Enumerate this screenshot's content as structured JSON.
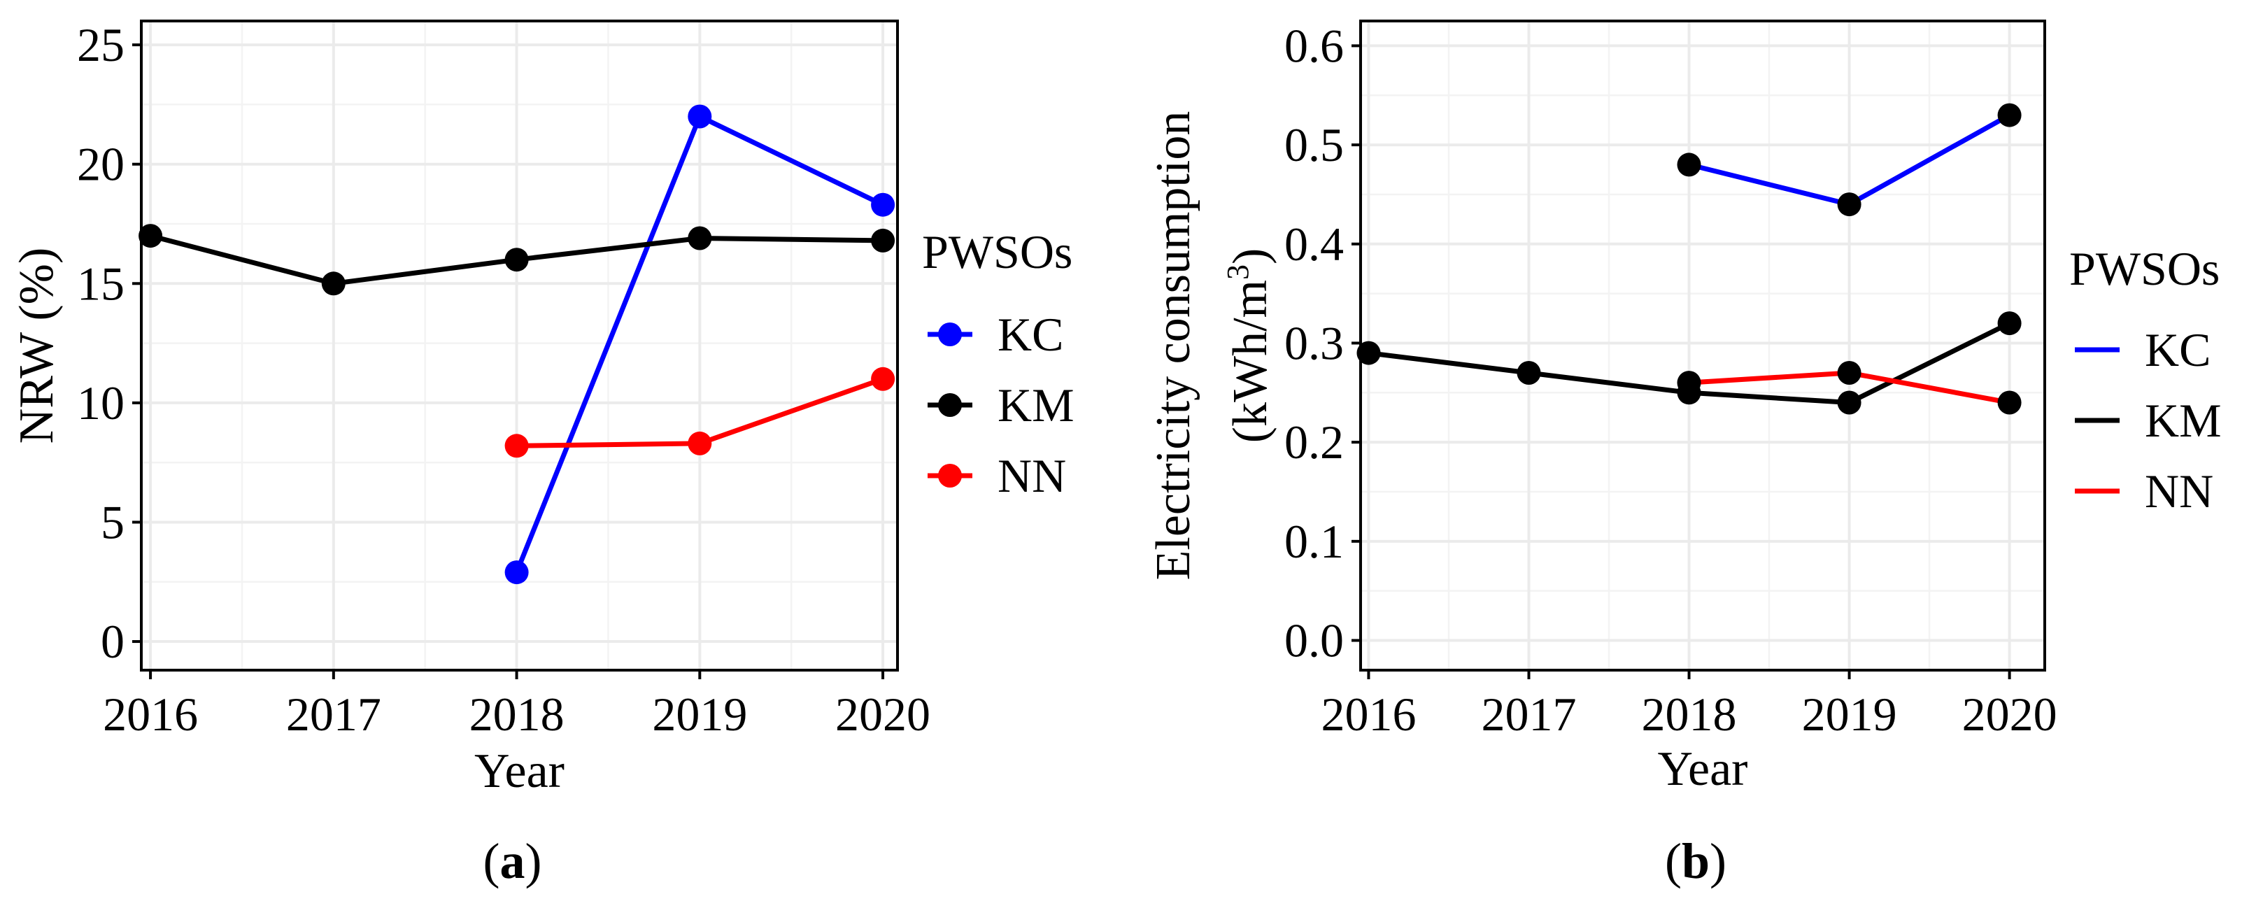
{
  "chart_data": [
    {
      "type": "line",
      "panel": "a",
      "panel_label": {
        "open": "(",
        "letter": "a",
        "close": ")"
      },
      "title": "",
      "xlabel": "Year",
      "ylabel": "NRW (%)",
      "x": [
        2016,
        2017,
        2018,
        2019,
        2020
      ],
      "x_tick_labels": [
        "2016",
        "2017",
        "2018",
        "2019",
        "2020"
      ],
      "xlim": [
        2015.95,
        2020.08
      ],
      "ylim": [
        -1.2,
        26
      ],
      "y_ticks": [
        0,
        5,
        10,
        15,
        20,
        25
      ],
      "y_tick_labels": [
        "0",
        "5",
        "10",
        "15",
        "20",
        "25"
      ],
      "grid": true,
      "legend": {
        "title": "PWSOs",
        "position": "right",
        "key": "point"
      },
      "series": [
        {
          "name": "KC",
          "color": "#0000ff",
          "points": [
            [
              2018,
              2.9
            ],
            [
              2019,
              22.0
            ],
            [
              2020,
              18.3
            ]
          ],
          "marker_color": "#0000ff"
        },
        {
          "name": "KM",
          "color": "#000000",
          "points": [
            [
              2016,
              17.0
            ],
            [
              2017,
              15.0
            ],
            [
              2018,
              16.0
            ],
            [
              2019,
              16.9
            ],
            [
              2020,
              16.8
            ]
          ],
          "marker_color": "#000000"
        },
        {
          "name": "NN",
          "color": "#ff0000",
          "points": [
            [
              2018,
              8.2
            ],
            [
              2019,
              8.3
            ],
            [
              2020,
              11.0
            ]
          ],
          "marker_color": "#ff0000"
        }
      ]
    },
    {
      "type": "line",
      "panel": "b",
      "panel_label": {
        "open": "(",
        "letter": "b",
        "close": ")"
      },
      "title": "",
      "xlabel": "Year",
      "ylabel": "Electricity consumption",
      "ylabel_line2": {
        "base": "(kWh/m",
        "sup": "3",
        "close": ")"
      },
      "x": [
        2016,
        2017,
        2018,
        2019,
        2020
      ],
      "x_tick_labels": [
        "2016",
        "2017",
        "2018",
        "2019",
        "2020"
      ],
      "xlim": [
        2015.95,
        2020.22
      ],
      "ylim": [
        -0.03,
        0.625
      ],
      "y_ticks": [
        0.0,
        0.1,
        0.2,
        0.3,
        0.4,
        0.5,
        0.6
      ],
      "y_tick_labels": [
        "0.0",
        "0.1",
        "0.2",
        "0.3",
        "0.4",
        "0.5",
        "0.6"
      ],
      "grid": true,
      "legend": {
        "title": "PWSOs",
        "position": "right",
        "key": "line"
      },
      "series": [
        {
          "name": "KC",
          "color": "#0000ff",
          "points": [
            [
              2018,
              0.48
            ],
            [
              2019,
              0.44
            ],
            [
              2020,
              0.53
            ]
          ],
          "marker_color": "#000000"
        },
        {
          "name": "KM",
          "color": "#000000",
          "points": [
            [
              2016,
              0.29
            ],
            [
              2017,
              0.27
            ],
            [
              2018,
              0.25
            ],
            [
              2019,
              0.24
            ],
            [
              2020,
              0.32
            ]
          ],
          "marker_color": "#000000"
        },
        {
          "name": "NN",
          "color": "#ff0000",
          "points": [
            [
              2018,
              0.26
            ],
            [
              2019,
              0.27
            ],
            [
              2020,
              0.24
            ]
          ],
          "marker_color": "#000000"
        }
      ]
    }
  ]
}
